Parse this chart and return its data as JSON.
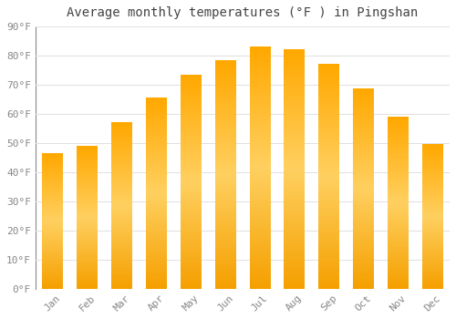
{
  "title": "Average monthly temperatures (°F ) in Pingshan",
  "months": [
    "Jan",
    "Feb",
    "Mar",
    "Apr",
    "May",
    "Jun",
    "Jul",
    "Aug",
    "Sep",
    "Oct",
    "Nov",
    "Dec"
  ],
  "values": [
    46.5,
    49.0,
    57.0,
    65.5,
    73.5,
    78.5,
    83.0,
    82.0,
    77.0,
    68.5,
    59.0,
    49.5
  ],
  "bar_color_bottom": "#F5A623",
  "bar_color_mid": "#FFD060",
  "bar_color_top": "#FFA500",
  "ylim": [
    0,
    90
  ],
  "yticks": [
    0,
    10,
    20,
    30,
    40,
    50,
    60,
    70,
    80,
    90
  ],
  "background_color": "#FFFFFF",
  "grid_color": "#E0E0E0",
  "title_fontsize": 10,
  "tick_fontsize": 8,
  "bar_width": 0.6
}
